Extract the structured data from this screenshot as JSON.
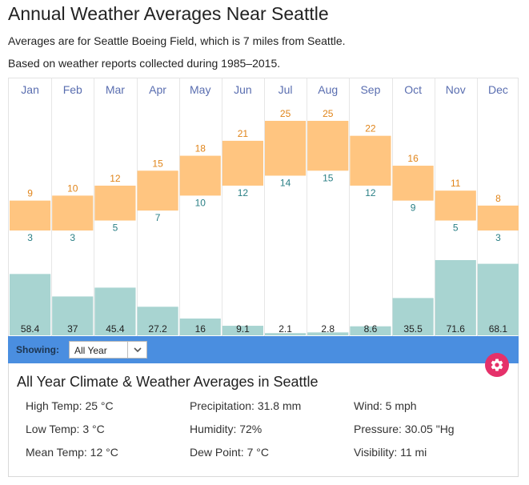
{
  "page": {
    "title": "Annual Weather Averages Near Seattle",
    "subtitle_1": "Averages are for Seattle Boeing Field, which is 7 miles from Seattle.",
    "subtitle_2": "Based on weather reports collected during 1985–2015."
  },
  "colors": {
    "temp_band": "#ffc580",
    "high_text": "#e08419",
    "low_text": "#2a7f85",
    "precip_bar": "#a8d4d1",
    "month_label": "#5a6eb0",
    "showing_bar": "#4a8ee0",
    "gear_button": "#e5316a"
  },
  "chart_data": {
    "type": "bar",
    "categories": [
      "Jan",
      "Feb",
      "Mar",
      "Apr",
      "May",
      "Jun",
      "Jul",
      "Aug",
      "Sep",
      "Oct",
      "Nov",
      "Dec"
    ],
    "series": [
      {
        "name": "High Temp",
        "values": [
          9,
          10,
          12,
          15,
          18,
          21,
          25,
          25,
          22,
          16,
          11,
          8
        ]
      },
      {
        "name": "Low Temp",
        "values": [
          3,
          3,
          5,
          7,
          10,
          12,
          14,
          15,
          12,
          9,
          5,
          3
        ]
      },
      {
        "name": "Precipitation",
        "values": [
          58.4,
          37,
          45.4,
          27.2,
          16,
          9.1,
          2.1,
          2.8,
          8.6,
          35.5,
          71.6,
          68.1
        ]
      }
    ],
    "labels": {
      "high": [
        "9",
        "10",
        "12",
        "15",
        "18",
        "21",
        "25",
        "25",
        "22",
        "16",
        "11",
        "8"
      ],
      "low": [
        "3",
        "3",
        "5",
        "7",
        "10",
        "12",
        "14",
        "15",
        "12",
        "9",
        "5",
        "3"
      ],
      "precip": [
        "58.4",
        "37",
        "45.4",
        "27.2",
        "16",
        "9.1",
        "2.1",
        "2.8",
        "8.6",
        "35.5",
        "71.6",
        "68.1"
      ]
    }
  },
  "showing": {
    "label": "Showing:",
    "selected": "All Year"
  },
  "gear_icon": "gear-icon",
  "summary": {
    "title": "All Year Climate & Weather Averages in Seattle",
    "stats": [
      "High Temp: 25 °C",
      "Precipitation: 31.8 mm",
      "Wind: 5 mph",
      "Low Temp: 3 °C",
      "Humidity: 72%",
      "Pressure: 30.05 \"Hg",
      "Mean Temp: 12 °C",
      "Dew Point: 7 °C",
      "Visibility: 11 mi"
    ]
  }
}
